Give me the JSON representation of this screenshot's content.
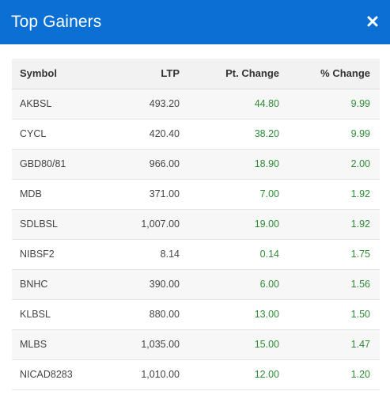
{
  "header": {
    "title": "Top Gainers",
    "close_icon": "close-icon",
    "background": "#0b6fd4"
  },
  "table": {
    "columns": [
      "Symbol",
      "LTP",
      "Pt. Change",
      "% Change"
    ],
    "rows": [
      {
        "symbol": "AKBSL",
        "ltp": "493.20",
        "pt_change": "44.80",
        "pct_change": "9.99"
      },
      {
        "symbol": "CYCL",
        "ltp": "420.40",
        "pt_change": "38.20",
        "pct_change": "9.99"
      },
      {
        "symbol": "GBD80/81",
        "ltp": "966.00",
        "pt_change": "18.90",
        "pct_change": "2.00"
      },
      {
        "symbol": "MDB",
        "ltp": "371.00",
        "pt_change": "7.00",
        "pct_change": "1.92"
      },
      {
        "symbol": "SDLBSL",
        "ltp": "1,007.00",
        "pt_change": "19.00",
        "pct_change": "1.92"
      },
      {
        "symbol": "NIBSF2",
        "ltp": "8.14",
        "pt_change": "0.14",
        "pct_change": "1.75"
      },
      {
        "symbol": "BNHC",
        "ltp": "390.00",
        "pt_change": "6.00",
        "pct_change": "1.56"
      },
      {
        "symbol": "KLBSL",
        "ltp": "880.00",
        "pt_change": "13.00",
        "pct_change": "1.50"
      },
      {
        "symbol": "MLBS",
        "ltp": "1,035.00",
        "pt_change": "15.00",
        "pct_change": "1.47"
      },
      {
        "symbol": "NICAD8283",
        "ltp": "1,010.00",
        "pt_change": "12.00",
        "pct_change": "1.20"
      }
    ],
    "positive_color": "#2e8b36"
  }
}
